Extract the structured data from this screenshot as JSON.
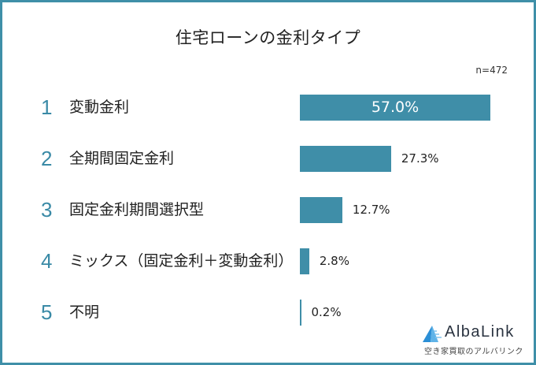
{
  "header": {
    "title": "住宅ローンの金利タイプ",
    "sample_size": "n=472"
  },
  "chart_data": {
    "type": "bar",
    "orientation": "horizontal",
    "title": "住宅ローンの金利タイプ",
    "note": "n=472",
    "categories": [
      "変動金利",
      "全期間固定金利",
      "固定金利期間選択型",
      "ミックス（固定金利＋変動金利）",
      "不明"
    ],
    "values": [
      57.0,
      27.3,
      12.7,
      2.8,
      0.2
    ],
    "unit": "%",
    "xlabel": "",
    "ylabel": "",
    "grid": false,
    "legend": "none",
    "color": "#3f8ea8"
  },
  "rows": [
    {
      "rank": "1",
      "label": "変動金利",
      "value_label": "57.0%",
      "value": 57.0
    },
    {
      "rank": "2",
      "label": "全期間固定金利",
      "value_label": "27.3%",
      "value": 27.3
    },
    {
      "rank": "3",
      "label": "固定金利期間選択型",
      "value_label": "12.7%",
      "value": 12.7
    },
    {
      "rank": "4",
      "label": "ミックス（固定金利＋変動金利）",
      "value_label": "2.8%",
      "value": 2.8
    },
    {
      "rank": "5",
      "label": "不明",
      "value_label": "0.2%",
      "value": 0.2
    }
  ],
  "branding": {
    "name": "AlbaLink",
    "tagline": "空き家買取のアルバリンク",
    "icon": "albalink-logo-icon"
  },
  "colors": {
    "accent": "#3f8ea8",
    "rank_number": "#3a8aa6",
    "frame_border": "#3f8fa8"
  }
}
